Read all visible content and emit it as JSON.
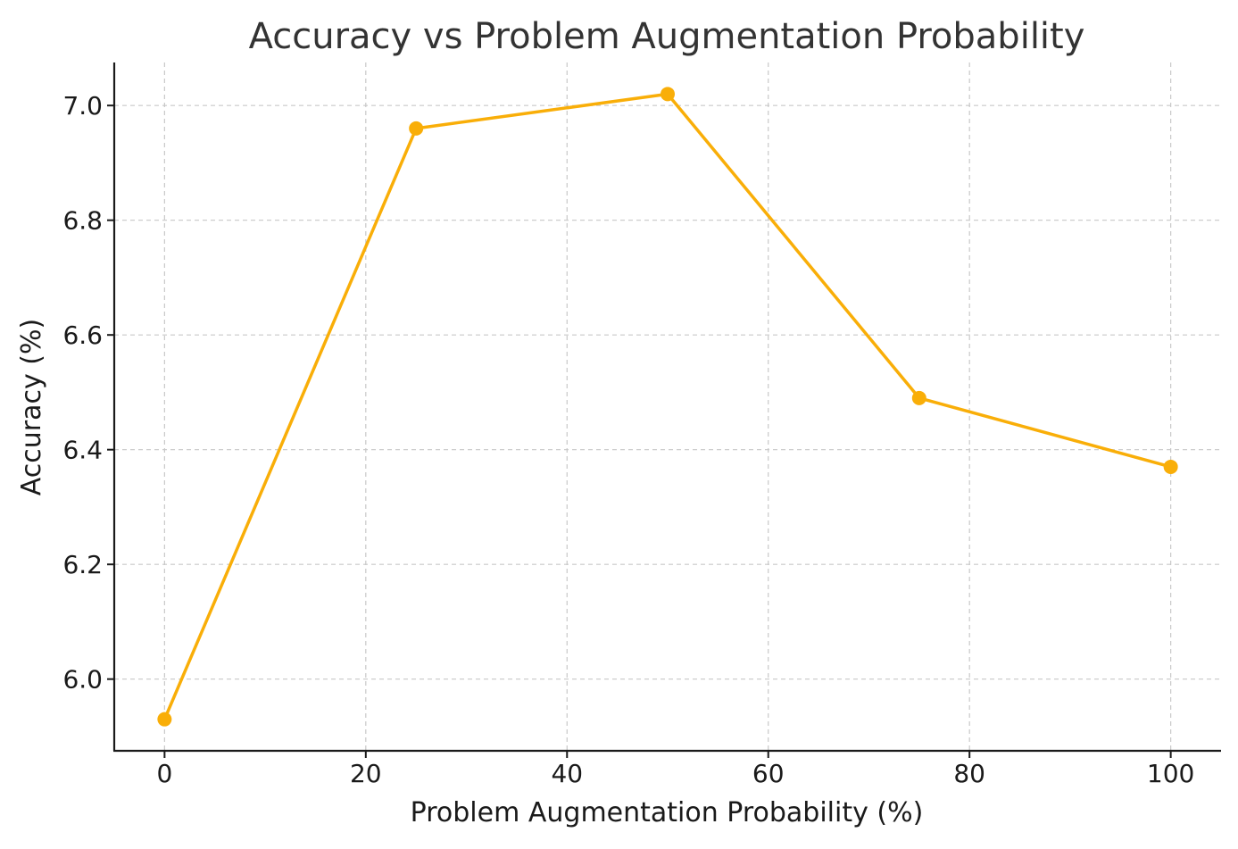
{
  "chart_data": {
    "type": "line",
    "title": "Accuracy vs Problem Augmentation Probability",
    "xlabel": "Problem Augmentation Probability (%)",
    "ylabel": "Accuracy (%)",
    "xlim": [
      -5,
      105
    ],
    "ylim": [
      5.875,
      7.075
    ],
    "x_ticks": [
      0,
      20,
      40,
      60,
      80,
      100
    ],
    "y_ticks": [
      6.0,
      6.2,
      6.4,
      6.6,
      6.8,
      7.0
    ],
    "x_tick_labels": [
      "0",
      "20",
      "40",
      "60",
      "80",
      "100"
    ],
    "y_tick_labels": [
      "6.0",
      "6.2",
      "6.4",
      "6.6",
      "6.8",
      "7.0"
    ],
    "grid": true,
    "legend": false,
    "series": [
      {
        "x": [
          0,
          25,
          50,
          75,
          100
        ],
        "values": [
          5.93,
          6.96,
          7.02,
          6.49,
          6.37
        ],
        "color": "#f9ae08",
        "marker": "circle"
      }
    ]
  }
}
